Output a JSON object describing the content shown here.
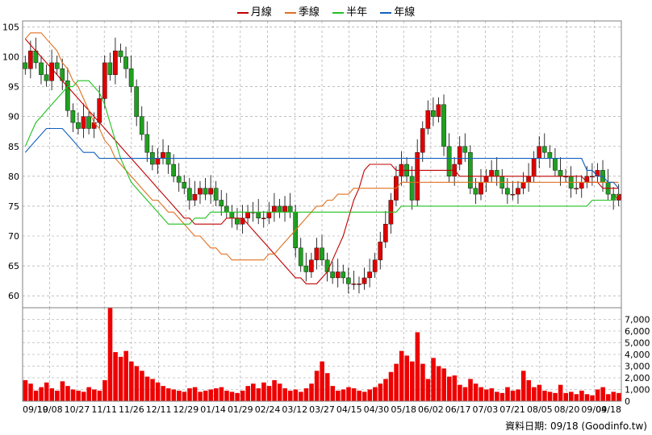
{
  "legend": [
    {
      "label": "月線",
      "color": "#c00000"
    },
    {
      "label": "季線",
      "color": "#e07020"
    },
    {
      "label": "半年",
      "color": "#20c020"
    },
    {
      "label": "年線",
      "color": "#1060c0"
    }
  ],
  "footer": "資料日期: 09/18  (Goodinfo.tw)",
  "colors": {
    "up": "#e00000",
    "down": "#20a020",
    "volume": "#ee0000",
    "grid": "#999999",
    "frame": "#808080"
  },
  "chart_data": [
    {
      "type": "candlestick",
      "grid": true,
      "legend_position": "top-center",
      "ylim": [
        58,
        106
      ],
      "yticks": [
        60,
        65,
        70,
        75,
        80,
        85,
        90,
        95,
        100,
        105
      ],
      "xtick_labels": [
        "09/19",
        "10/08",
        "10/27",
        "11/11",
        "11/26",
        "12/11",
        "12/29",
        "01/14",
        "01/29",
        "02/24",
        "03/12",
        "03/27",
        "04/15",
        "04/30",
        "05/18",
        "06/02",
        "06/17",
        "07/03",
        "07/21",
        "08/05",
        "08/20",
        "09/04",
        "09/18"
      ],
      "price_close": [
        98,
        101,
        99,
        97,
        96,
        99,
        98,
        96,
        91,
        89,
        88,
        90,
        88,
        89,
        93,
        99,
        97,
        101,
        100,
        98,
        95,
        90,
        87,
        84,
        82,
        83,
        84,
        82,
        80,
        79,
        78,
        76,
        77,
        78,
        77,
        78,
        76,
        75,
        74,
        73,
        72,
        73,
        74,
        74,
        73,
        73,
        74,
        75,
        74,
        75,
        74,
        68,
        65,
        64,
        66,
        68,
        66,
        64,
        63,
        64,
        63,
        62,
        62,
        62,
        63,
        64,
        66,
        69,
        72,
        76,
        80,
        82,
        80,
        76,
        84,
        88,
        91,
        90,
        92,
        85,
        80,
        82,
        85,
        84,
        78,
        77,
        79,
        80,
        81,
        80,
        78,
        77,
        77,
        78,
        79,
        80,
        83,
        85,
        84,
        83,
        81,
        80,
        80,
        78,
        78,
        79,
        80,
        80,
        81,
        79,
        77,
        76,
        77
      ],
      "series": [
        {
          "name": "月線",
          "values": [
            103,
            102,
            101,
            100,
            99,
            98,
            97,
            96,
            95,
            94,
            93,
            92,
            91,
            90,
            89,
            88,
            87,
            86,
            85,
            84,
            83,
            82,
            81,
            80,
            79,
            78,
            77,
            76,
            75,
            74,
            73,
            73,
            72,
            72,
            72,
            72,
            72,
            72,
            73,
            73,
            73,
            73,
            72,
            71,
            70,
            69,
            68,
            67,
            66,
            65,
            64,
            63,
            63,
            62,
            62,
            62,
            63,
            64,
            66,
            68,
            70,
            73,
            76,
            78,
            81,
            82,
            82,
            82,
            82,
            82,
            81,
            81,
            81,
            81,
            81,
            81,
            81,
            81,
            81,
            81,
            81,
            81,
            80,
            80,
            80,
            80,
            80,
            80,
            80,
            80,
            80,
            80,
            80,
            80,
            80,
            80,
            80,
            80,
            80,
            80,
            80,
            80,
            80,
            80,
            80,
            80,
            79,
            79,
            79,
            78,
            78,
            78,
            78
          ]
        },
        {
          "name": "季線",
          "values": [
            103,
            104,
            104,
            104,
            103,
            102,
            101,
            99,
            98,
            96,
            95,
            93,
            91,
            89,
            88,
            86,
            85,
            83,
            82,
            81,
            80,
            79,
            78,
            77,
            76,
            76,
            75,
            74,
            74,
            73,
            72,
            71,
            70,
            70,
            69,
            68,
            68,
            67,
            67,
            66,
            66,
            66,
            66,
            66,
            66,
            66,
            67,
            67,
            68,
            69,
            70,
            71,
            72,
            73,
            74,
            75,
            75,
            76,
            76,
            77,
            77,
            77,
            78,
            78,
            78,
            78,
            78,
            78,
            78,
            78,
            78,
            79,
            79,
            79,
            79,
            79,
            79,
            79,
            79,
            79,
            79,
            79,
            79,
            79,
            79,
            79,
            79,
            79,
            79,
            79,
            79,
            79,
            79,
            79,
            79,
            79,
            79,
            79,
            79,
            79,
            79,
            79,
            79,
            79,
            79,
            79,
            79,
            79,
            79,
            79,
            79,
            79,
            79
          ]
        },
        {
          "name": "半年",
          "values": [
            85,
            87,
            89,
            90,
            91,
            92,
            93,
            94,
            95,
            95,
            96,
            96,
            96,
            95,
            94,
            92,
            89,
            86,
            83,
            81,
            79,
            78,
            77,
            76,
            75,
            74,
            73,
            72,
            72,
            72,
            72,
            72,
            73,
            73,
            73,
            74,
            74,
            74,
            74,
            74,
            74,
            74,
            74,
            74,
            74,
            74,
            74,
            74,
            74,
            74,
            74,
            74,
            74,
            74,
            74,
            74,
            74,
            74,
            74,
            74,
            74,
            74,
            74,
            74,
            74,
            74,
            74,
            74,
            74,
            74,
            74,
            75,
            75,
            75,
            75,
            75,
            75,
            75,
            75,
            75,
            75,
            75,
            75,
            75,
            75,
            75,
            75,
            75,
            75,
            75,
            75,
            75,
            75,
            75,
            75,
            75,
            75,
            75,
            75,
            75,
            75,
            75,
            75,
            75,
            75,
            75,
            75,
            76,
            76,
            76,
            76,
            76,
            77
          ]
        },
        {
          "name": "年線",
          "values": [
            84,
            85,
            86,
            87,
            88,
            88,
            88,
            88,
            87,
            86,
            85,
            84,
            84,
            84,
            83,
            83,
            83,
            83,
            83,
            83,
            83,
            83,
            83,
            83,
            83,
            83,
            83,
            83,
            83,
            83,
            83,
            83,
            83,
            83,
            83,
            83,
            83,
            83,
            83,
            83,
            83,
            83,
            83,
            83,
            83,
            83,
            83,
            83,
            83,
            83,
            83,
            83,
            83,
            83,
            83,
            83,
            83,
            83,
            83,
            83,
            83,
            83,
            83,
            83,
            83,
            83,
            83,
            83,
            83,
            83,
            83,
            83,
            83,
            83,
            83,
            83,
            83,
            83,
            83,
            83,
            83,
            83,
            83,
            83,
            83,
            83,
            83,
            83,
            83,
            83,
            83,
            83,
            83,
            83,
            83,
            83,
            83,
            83,
            83,
            83,
            83,
            83,
            83,
            83,
            83,
            83,
            81,
            81,
            80,
            80,
            79,
            79,
            78
          ]
        }
      ]
    },
    {
      "type": "bar",
      "grid": true,
      "ylim": [
        0,
        8000
      ],
      "ytick_labels": [
        "0",
        "1,000",
        "2,000",
        "3,000",
        "4,000",
        "5,000",
        "6,000",
        "7,000"
      ],
      "values": [
        1800,
        1500,
        900,
        1200,
        1600,
        1100,
        900,
        1700,
        1300,
        1000,
        900,
        800,
        1200,
        1000,
        900,
        1800,
        8500,
        4200,
        3800,
        4300,
        3400,
        3000,
        2600,
        2100,
        1900,
        1600,
        1300,
        1100,
        1000,
        900,
        800,
        1100,
        1200,
        800,
        900,
        1000,
        1100,
        1200,
        900,
        800,
        700,
        900,
        1300,
        1500,
        1100,
        1600,
        1300,
        1800,
        1500,
        1100,
        900,
        1000,
        800,
        1100,
        1500,
        2600,
        3400,
        2400,
        1300,
        900,
        1000,
        1200,
        1100,
        900,
        800,
        1000,
        1200,
        1500,
        1900,
        2500,
        3200,
        4300,
        3900,
        3400,
        5900,
        3200,
        1900,
        3700,
        3000,
        2800,
        2100,
        2200,
        1400,
        1200,
        1900,
        1500,
        1200,
        1000,
        1100,
        800,
        700,
        1200,
        900,
        1000,
        2600,
        1800,
        1200,
        1400,
        900,
        800,
        700,
        1400,
        700,
        800,
        600,
        900,
        600,
        500,
        1000,
        1200,
        600,
        800,
        700
      ]
    }
  ]
}
